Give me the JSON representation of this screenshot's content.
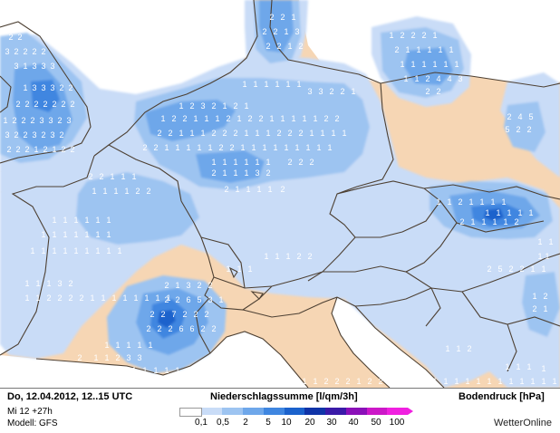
{
  "colors": {
    "land": "#f6d6b4",
    "sea": "#ffffff",
    "p1": "#c9dcf7",
    "p2": "#9dc4f1",
    "p3": "#6ea7ea",
    "p4": "#3f86e0",
    "p5": "#1b62cc",
    "border": "#4d4033",
    "digit": "#ffffff"
  },
  "footer": {
    "date": "Do, 12.04.2012, 12..15 UTC",
    "run": "Mi 12 +27h",
    "model": "Modell: GFS",
    "legend_title": "Niederschlagssumme [l/qm/3h]",
    "pressure_title": "Bodendruck [hPa]",
    "brand": "WetterOnline"
  },
  "legend": {
    "ticks": [
      "0,1",
      "0,5",
      "2",
      "5",
      "10",
      "20",
      "30",
      "40",
      "50",
      "100"
    ],
    "colors": [
      "#ffffff",
      "#c9dcf7",
      "#9dc4f1",
      "#6ea7ea",
      "#3f86e0",
      "#1b62cc",
      "#1034a8",
      "#3a1aa8",
      "#8a10b8",
      "#cc18c8",
      "#f020e0"
    ]
  },
  "map": {
    "precip_labels": [
      {
        "t": "2"
      },
      {
        "t": "2"
      },
      {
        "t": "3"
      },
      {
        "t": "2"
      },
      {
        "t": "2"
      },
      {
        "t": "2"
      },
      {
        "t": "2"
      },
      {
        "t": "3"
      },
      {
        "t": "1"
      },
      {
        "t": "3"
      },
      {
        "t": "3"
      },
      {
        "t": "3"
      },
      {
        "t": "1"
      },
      {
        "t": "3"
      },
      {
        "t": "3"
      },
      {
        "t": "3"
      },
      {
        "t": "2"
      },
      {
        "t": "2"
      },
      {
        "t": "2"
      },
      {
        "t": "2"
      },
      {
        "t": "2"
      },
      {
        "t": "2"
      },
      {
        "t": "2"
      },
      {
        "t": "2"
      },
      {
        "t": "2"
      },
      {
        "t": "1"
      },
      {
        "t": "2"
      },
      {
        "t": "2"
      },
      {
        "t": "2"
      },
      {
        "t": "3"
      },
      {
        "t": "3"
      },
      {
        "t": "2"
      },
      {
        "t": "3"
      },
      {
        "t": "3"
      },
      {
        "t": "2"
      },
      {
        "t": "2"
      },
      {
        "t": "3"
      },
      {
        "t": "2"
      },
      {
        "t": "3"
      },
      {
        "t": "2"
      },
      {
        "t": "2"
      },
      {
        "t": "2"
      },
      {
        "t": "2"
      },
      {
        "t": "1"
      },
      {
        "t": "2"
      },
      {
        "t": "1"
      },
      {
        "t": "2"
      },
      {
        "t": "2"
      },
      {
        "t": "1"
      },
      {
        "t": "2"
      },
      {
        "t": "3"
      },
      {
        "t": "2"
      },
      {
        "t": "1"
      },
      {
        "t": "2"
      },
      {
        "t": "1"
      },
      {
        "t": "1"
      },
      {
        "t": "2"
      },
      {
        "t": "2"
      },
      {
        "t": "1"
      },
      {
        "t": "1"
      },
      {
        "t": "1"
      },
      {
        "t": "2"
      },
      {
        "t": "1"
      },
      {
        "t": "2"
      },
      {
        "t": "2"
      },
      {
        "t": "1"
      },
      {
        "t": "1"
      },
      {
        "t": "1"
      },
      {
        "t": "1"
      },
      {
        "t": "1"
      },
      {
        "t": "2"
      },
      {
        "t": "2"
      },
      {
        "t": "2"
      },
      {
        "t": "2"
      },
      {
        "t": "1"
      },
      {
        "t": "1"
      },
      {
        "t": "1"
      },
      {
        "t": "2"
      },
      {
        "t": "2"
      },
      {
        "t": "2"
      },
      {
        "t": "1"
      },
      {
        "t": "1"
      },
      {
        "t": "1"
      },
      {
        "t": "2"
      },
      {
        "t": "2"
      },
      {
        "t": "2"
      },
      {
        "t": "1"
      },
      {
        "t": "1"
      },
      {
        "t": "1"
      },
      {
        "t": "1"
      },
      {
        "t": "2"
      },
      {
        "t": "2"
      },
      {
        "t": "1"
      },
      {
        "t": "1"
      },
      {
        "t": "1"
      },
      {
        "t": "1"
      },
      {
        "t": "1"
      },
      {
        "t": "2"
      },
      {
        "t": "2"
      },
      {
        "t": "1"
      },
      {
        "t": "1"
      },
      {
        "t": "1"
      },
      {
        "t": "1"
      },
      {
        "t": "1"
      },
      {
        "t": "1"
      },
      {
        "t": "1"
      },
      {
        "t": "1"
      },
      {
        "t": "1"
      },
      {
        "t": "1"
      },
      {
        "t": "1"
      },
      {
        "t": "1"
      },
      {
        "t": "1"
      },
      {
        "t": "1"
      },
      {
        "t": "1"
      },
      {
        "t": "2"
      },
      {
        "t": "2"
      },
      {
        "t": "2"
      },
      {
        "t": "2"
      },
      {
        "t": "1"
      },
      {
        "t": "1"
      },
      {
        "t": "1"
      },
      {
        "t": "3"
      },
      {
        "t": "2"
      },
      {
        "t": "2"
      },
      {
        "t": "1"
      },
      {
        "t": "1"
      },
      {
        "t": "1"
      },
      {
        "t": "1"
      },
      {
        "t": "2"
      },
      {
        "t": "2"
      },
      {
        "t": "2"
      },
      {
        "t": "1"
      },
      {
        "t": "1"
      },
      {
        "t": "1"
      },
      {
        "t": "1"
      },
      {
        "t": "1"
      },
      {
        "t": "1"
      },
      {
        "t": "1"
      },
      {
        "t": "2"
      },
      {
        "t": "2"
      },
      {
        "t": "1"
      },
      {
        "t": "1"
      },
      {
        "t": "1"
      },
      {
        "t": "1"
      },
      {
        "t": "1"
      },
      {
        "t": "1"
      },
      {
        "t": "1"
      },
      {
        "t": "1"
      },
      {
        "t": "1"
      },
      {
        "t": "1"
      },
      {
        "t": "1"
      },
      {
        "t": "1"
      },
      {
        "t": "1"
      },
      {
        "t": "1"
      },
      {
        "t": "1"
      },
      {
        "t": "1"
      },
      {
        "t": "1"
      },
      {
        "t": "1"
      },
      {
        "t": "1"
      },
      {
        "t": "1"
      },
      {
        "t": "1"
      },
      {
        "t": "1"
      },
      {
        "t": "2"
      },
      {
        "t": "2"
      },
      {
        "t": "1"
      },
      {
        "t": "2"
      },
      {
        "t": "2"
      },
      {
        "t": "1"
      },
      {
        "t": "3"
      },
      {
        "t": "2"
      },
      {
        "t": "2"
      },
      {
        "t": "1"
      },
      {
        "t": "2"
      },
      {
        "t": "1"
      },
      {
        "t": "1"
      },
      {
        "t": "1"
      },
      {
        "t": "1"
      },
      {
        "t": "1"
      },
      {
        "t": "1"
      },
      {
        "t": "3"
      },
      {
        "t": "3"
      },
      {
        "t": "2"
      },
      {
        "t": "2"
      },
      {
        "t": "1"
      },
      {
        "t": "1"
      },
      {
        "t": "2"
      },
      {
        "t": "2"
      },
      {
        "t": "2"
      },
      {
        "t": "1"
      },
      {
        "t": "2"
      },
      {
        "t": "1"
      },
      {
        "t": "1"
      },
      {
        "t": "1"
      },
      {
        "t": "1"
      },
      {
        "t": "1"
      },
      {
        "t": "1"
      },
      {
        "t": "1"
      },
      {
        "t": "1"
      },
      {
        "t": "1"
      },
      {
        "t": "1"
      },
      {
        "t": "1"
      },
      {
        "t": "1"
      },
      {
        "t": "1"
      },
      {
        "t": "2"
      },
      {
        "t": "4"
      },
      {
        "t": "4"
      },
      {
        "t": "3"
      },
      {
        "t": "2"
      },
      {
        "t": "2"
      },
      {
        "t": "2"
      },
      {
        "t": "4"
      },
      {
        "t": "5"
      },
      {
        "t": "5"
      },
      {
        "t": "2"
      },
      {
        "t": "2"
      },
      {
        "t": "1"
      },
      {
        "t": "1"
      },
      {
        "t": "2"
      },
      {
        "t": "1"
      },
      {
        "t": "1"
      },
      {
        "t": "1"
      },
      {
        "t": "1"
      },
      {
        "t": "1"
      },
      {
        "t": "1"
      },
      {
        "t": "1"
      },
      {
        "t": "1"
      },
      {
        "t": "1"
      },
      {
        "t": "2"
      },
      {
        "t": "1"
      },
      {
        "t": "1"
      },
      {
        "t": "1"
      },
      {
        "t": "1"
      },
      {
        "t": "2"
      },
      {
        "t": "1"
      },
      {
        "t": "1"
      },
      {
        "t": "1"
      },
      {
        "t": "1"
      },
      {
        "t": "2"
      },
      {
        "t": "5"
      },
      {
        "t": "2"
      },
      {
        "t": "2"
      },
      {
        "t": "1"
      },
      {
        "t": "1"
      },
      {
        "t": "1"
      },
      {
        "t": "2"
      },
      {
        "t": "2"
      },
      {
        "t": "1"
      },
      {
        "t": "1"
      },
      {
        "t": "1"
      },
      {
        "t": "2"
      },
      {
        "t": "1"
      },
      {
        "t": "1"
      },
      {
        "t": "1"
      },
      {
        "t": "1"
      },
      {
        "t": "1"
      },
      {
        "t": "1"
      },
      {
        "t": "1"
      },
      {
        "t": "1"
      },
      {
        "t": "1"
      },
      {
        "t": "1"
      },
      {
        "t": "2"
      },
      {
        "t": "2"
      },
      {
        "t": "2"
      },
      {
        "t": "1"
      },
      {
        "t": "3"
      },
      {
        "t": "2"
      },
      {
        "t": "2"
      },
      {
        "t": "2"
      },
      {
        "t": "2"
      },
      {
        "t": "6"
      },
      {
        "t": "5"
      },
      {
        "t": "3"
      },
      {
        "t": "1"
      },
      {
        "t": "2"
      },
      {
        "t": "2"
      },
      {
        "t": "7"
      },
      {
        "t": "2"
      },
      {
        "t": "2"
      },
      {
        "t": "2"
      },
      {
        "t": "2"
      },
      {
        "t": "2"
      },
      {
        "t": "2"
      },
      {
        "t": "6"
      },
      {
        "t": "6"
      },
      {
        "t": "2"
      },
      {
        "t": "2"
      },
      {
        "t": "1"
      },
      {
        "t": "1"
      },
      {
        "t": "1"
      },
      {
        "t": "1"
      },
      {
        "t": "1"
      },
      {
        "t": "1"
      },
      {
        "t": "1"
      },
      {
        "t": "2"
      },
      {
        "t": "3"
      },
      {
        "t": "3"
      },
      {
        "t": "2"
      },
      {
        "t": "1"
      },
      {
        "t": "2"
      },
      {
        "t": "1"
      },
      {
        "t": "1"
      },
      {
        "t": "1"
      },
      {
        "t": "1"
      },
      {
        "t": "1"
      },
      {
        "t": "1"
      },
      {
        "t": "1"
      },
      {
        "t": "1"
      },
      {
        "t": "1"
      },
      {
        "t": "1"
      },
      {
        "t": "3"
      },
      {
        "t": "3"
      },
      {
        "t": "1"
      },
      {
        "t": "2"
      },
      {
        "t": "1"
      },
      {
        "t": "1"
      },
      {
        "t": "1"
      },
      {
        "t": "1"
      },
      {
        "t": "1"
      },
      {
        "t": "1"
      },
      {
        "t": "2"
      },
      {
        "t": "1"
      },
      {
        "t": "1"
      },
      {
        "t": "1"
      },
      {
        "t": "1"
      },
      {
        "t": "2"
      },
      {
        "t": "2"
      },
      {
        "t": "2"
      },
      {
        "t": "1"
      },
      {
        "t": "2"
      },
      {
        "t": "2"
      },
      {
        "t": "1"
      },
      {
        "t": "1"
      },
      {
        "t": "1"
      },
      {
        "t": "1"
      },
      {
        "t": "1"
      },
      {
        "t": "1"
      },
      {
        "t": "1"
      },
      {
        "t": "1"
      },
      {
        "t": "1"
      },
      {
        "t": "1"
      },
      {
        "t": "1"
      },
      {
        "t": "1"
      },
      {
        "t": "1"
      },
      {
        "t": "1"
      },
      {
        "t": "1"
      },
      {
        "t": "1"
      },
      {
        "t": "1"
      },
      {
        "t": "1"
      },
      {
        "t": "1"
      },
      {
        "t": "3"
      },
      {
        "t": "2"
      },
      {
        "t": "1"
      },
      {
        "t": "1"
      },
      {
        "t": "2"
      },
      {
        "t": "2"
      },
      {
        "t": "2"
      },
      {
        "t": "2"
      },
      {
        "t": "1"
      },
      {
        "t": "1"
      },
      {
        "t": "1"
      },
      {
        "t": "1"
      },
      {
        "t": "1"
      },
      {
        "t": "1"
      },
      {
        "t": "1"
      },
      {
        "t": "1"
      }
    ]
  }
}
